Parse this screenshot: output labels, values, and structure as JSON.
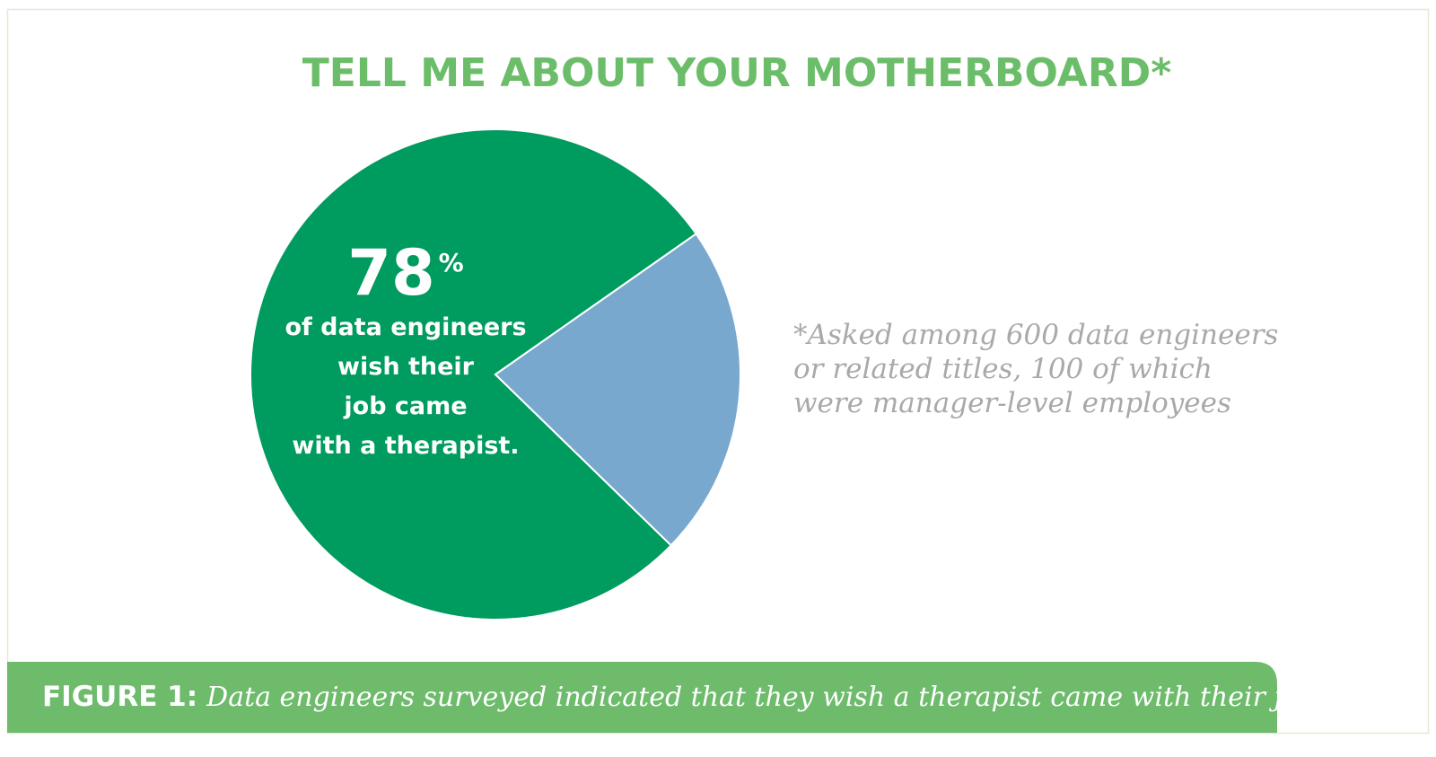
{
  "chart_data": {
    "type": "pie",
    "title": "TELL ME ABOUT YOUR MOTHERBOARD*",
    "values": [
      78,
      22
    ],
    "colors": [
      "#009b5e",
      "#79a8cf"
    ],
    "value_labels": [
      "78%",
      null
    ],
    "annotation_lines": [
      "of data engineers",
      "wish their",
      "job came",
      "with a therapist."
    ],
    "footnote_lines": [
      "*Asked among 600 data engineers",
      "or related titles, 100 of which",
      "were manager-level employees"
    ],
    "caption_label": "FIGURE 1:",
    "caption_text": "Data engineers surveyed indicated that they wish a therapist came with their job."
  }
}
